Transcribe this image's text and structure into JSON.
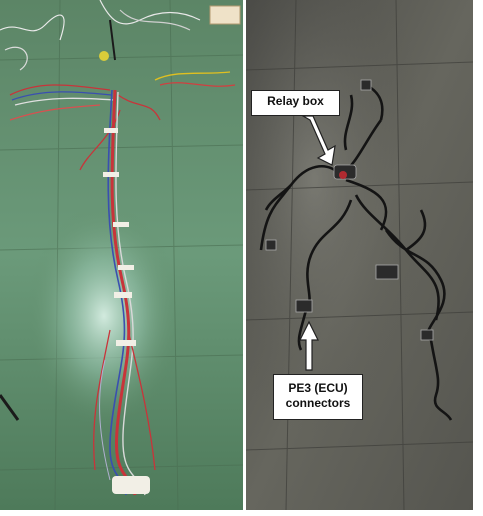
{
  "images": {
    "left": {
      "subject": "wiring harness laid out on green workshop floor"
    },
    "right": {
      "subject": "finished wiring harness on grey tiled floor"
    }
  },
  "annotations": {
    "relay_box": "Relay box",
    "ecu_connectors_line1": "PE3 (ECU)",
    "ecu_connectors_line2": "connectors"
  },
  "colors": {
    "green_floor": "#5f8a66",
    "grey_floor": "#5b5b55",
    "wire_red": "#c8343a",
    "wire_black": "#1a1a1a"
  }
}
